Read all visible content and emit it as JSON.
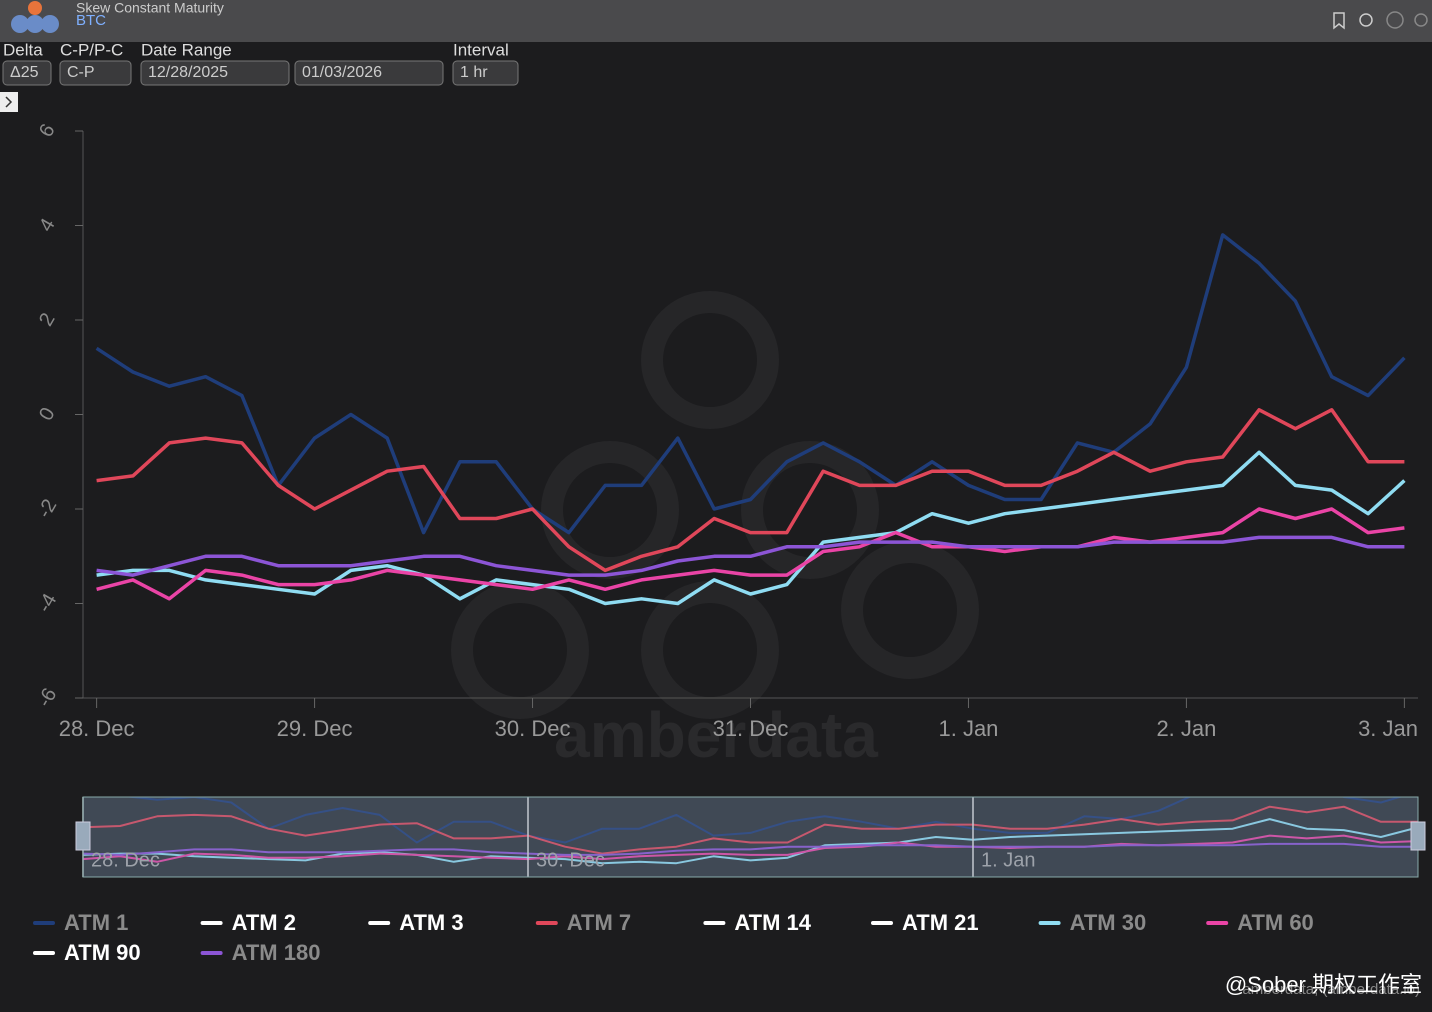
{
  "header": {
    "title": "Skew Constant Maturity",
    "subtitle": "BTC"
  },
  "controls": [
    {
      "label": "Delta",
      "value": "Δ25"
    },
    {
      "label": "C-P/P-C",
      "value": "C-P"
    },
    {
      "label": "Date Range",
      "value": "12/28/2025"
    },
    {
      "label": null,
      "value": "01/03/2026"
    },
    {
      "label": "Interval",
      "value": "1 hr"
    }
  ],
  "chart_data": {
    "type": "line",
    "x": [
      0,
      4,
      8,
      12,
      16,
      20,
      24,
      28,
      32,
      36,
      40,
      44,
      48,
      52,
      56,
      60,
      64,
      68,
      72,
      76,
      80,
      84,
      88,
      92,
      96,
      100,
      104,
      108,
      112,
      116,
      120,
      124,
      128,
      132,
      136,
      140,
      144
    ],
    "xlim": [
      -1.5,
      145.5
    ],
    "xticks": [
      {
        "value": 0,
        "label": "28. Dec"
      },
      {
        "value": 24,
        "label": "29. Dec"
      },
      {
        "value": 48,
        "label": "30. Dec"
      },
      {
        "value": 72,
        "label": "31. Dec"
      },
      {
        "value": 96,
        "label": "1. Jan"
      },
      {
        "value": 120,
        "label": "2. Jan"
      },
      {
        "value": 144,
        "label": "3. Jan"
      }
    ],
    "ylim": [
      -6,
      6
    ],
    "yticks": [
      6,
      4,
      2,
      0,
      -2,
      -4,
      -6
    ],
    "series": [
      {
        "name": "ATM 1",
        "color": "#1f3d7a",
        "values": [
          1.4,
          0.9,
          0.6,
          0.8,
          0.4,
          -1.5,
          -0.5,
          0,
          -0.5,
          -2.5,
          -1,
          -1,
          -2,
          -2.5,
          -1.5,
          -1.5,
          -0.5,
          -2,
          -1.8,
          -1,
          -0.6,
          -1,
          -1.5,
          -1,
          -1.5,
          -1.8,
          -1.8,
          -0.6,
          -0.8,
          -0.2,
          1.0,
          3.8,
          3.2,
          2.4,
          0.8,
          0.4,
          1.2
        ]
      },
      {
        "name": "ATM 2",
        "color": "#ffffff",
        "values": null
      },
      {
        "name": "ATM 3",
        "color": "#ffffff",
        "values": null
      },
      {
        "name": "ATM 7",
        "color": "#e0475a",
        "values": [
          -1.4,
          -1.3,
          -0.6,
          -0.5,
          -0.6,
          -1.5,
          -2.0,
          -1.6,
          -1.2,
          -1.1,
          -2.2,
          -2.2,
          -2.0,
          -2.8,
          -3.3,
          -3.0,
          -2.8,
          -2.2,
          -2.5,
          -2.5,
          -1.2,
          -1.5,
          -1.5,
          -1.2,
          -1.2,
          -1.5,
          -1.5,
          -1.2,
          -0.8,
          -1.2,
          -1.0,
          -0.9,
          0.1,
          -0.3,
          0.1,
          -1.0,
          -1.0
        ]
      },
      {
        "name": "ATM 14",
        "color": "#ffffff",
        "values": null
      },
      {
        "name": "ATM 21",
        "color": "#ffffff",
        "values": null
      },
      {
        "name": "ATM 30",
        "color": "#8fdcf2",
        "values": [
          -3.4,
          -3.3,
          -3.3,
          -3.5,
          -3.6,
          -3.7,
          -3.8,
          -3.3,
          -3.2,
          -3.4,
          -3.9,
          -3.5,
          -3.6,
          -3.7,
          -4.0,
          -3.9,
          -4.0,
          -3.5,
          -3.8,
          -3.6,
          -2.7,
          -2.6,
          -2.5,
          -2.1,
          -2.3,
          -2.1,
          -2.0,
          -1.9,
          -1.8,
          -1.7,
          -1.6,
          -1.5,
          -0.8,
          -1.5,
          -1.6,
          -2.1,
          -1.4
        ]
      },
      {
        "name": "ATM 60",
        "color": "#ea44a6",
        "values": [
          -3.7,
          -3.5,
          -3.9,
          -3.3,
          -3.4,
          -3.6,
          -3.6,
          -3.5,
          -3.3,
          -3.4,
          -3.5,
          -3.6,
          -3.7,
          -3.5,
          -3.7,
          -3.5,
          -3.4,
          -3.3,
          -3.4,
          -3.4,
          -2.9,
          -2.8,
          -2.5,
          -2.8,
          -2.8,
          -2.9,
          -2.8,
          -2.8,
          -2.6,
          -2.7,
          -2.6,
          -2.5,
          -2.0,
          -2.2,
          -2.0,
          -2.5,
          -2.4
        ]
      },
      {
        "name": "ATM 90",
        "color": "#ffffff",
        "values": null
      },
      {
        "name": "ATM 180",
        "color": "#8c55d6",
        "values": [
          -3.3,
          -3.4,
          -3.2,
          -3.0,
          -3.0,
          -3.2,
          -3.2,
          -3.2,
          -3.1,
          -3.0,
          -3.0,
          -3.2,
          -3.3,
          -3.4,
          -3.4,
          -3.3,
          -3.1,
          -3.0,
          -3.0,
          -2.8,
          -2.8,
          -2.7,
          -2.7,
          -2.7,
          -2.8,
          -2.8,
          -2.8,
          -2.8,
          -2.7,
          -2.7,
          -2.7,
          -2.7,
          -2.6,
          -2.6,
          -2.6,
          -2.8,
          -2.8
        ]
      }
    ],
    "navigator": {
      "xlim": [
        0,
        144
      ],
      "ylim": [
        -5,
        0.8
      ],
      "xticks": [
        {
          "value": 0,
          "label": "28. Dec"
        },
        {
          "value": 48,
          "label": "30. Dec"
        },
        {
          "value": 96,
          "label": "1. Jan"
        }
      ]
    },
    "watermark": "amberdata",
    "credits": "amberdata, (amberdata.io)"
  },
  "overlay": "@Sober 期权工作室"
}
